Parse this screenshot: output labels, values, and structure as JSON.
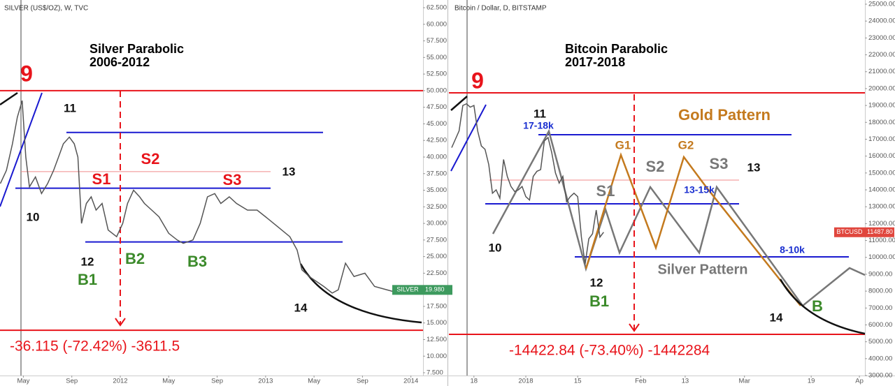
{
  "chart_data": [
    {
      "type": "line",
      "header": "SILVER (US$/OZ), W, TVC",
      "title": "Silver Parabolic",
      "subtitle": "2006-2012",
      "color": "#555555",
      "x": [
        2.1,
        2.6,
        3.1,
        3.5,
        3.9,
        4.2,
        4.5,
        5.0,
        5.5,
        6.0,
        6.5,
        6.9,
        7.3,
        7.8,
        8.2,
        8.5,
        8.8,
        9.2,
        9.6,
        10.0,
        10.5,
        11.0,
        11.7,
        12.2,
        12.6,
        13.1,
        13.6,
        14.0,
        14.6,
        15.2,
        16.0,
        16.7,
        17.2,
        18.0,
        18.6,
        19.2,
        19.8,
        20.3,
        21.0,
        21.6,
        22.5,
        23.3,
        24.0,
        25.0,
        26.0,
        26.6,
        27.0,
        27.6,
        28.0,
        28.8,
        29.5,
        30.0,
        30.6,
        31.3,
        32.2,
        33.0,
        34.0,
        35.0,
        36.5
      ],
      "values": [
        36,
        38,
        42,
        46,
        48.5,
        40,
        35.5,
        37,
        34.5,
        36,
        38,
        40,
        42,
        43,
        42,
        40,
        30,
        33,
        34,
        32,
        33,
        29,
        28,
        30,
        33,
        35,
        34,
        33,
        32,
        31,
        28.5,
        27.5,
        27,
        27.5,
        30,
        34,
        34.5,
        33,
        34,
        33,
        32,
        32,
        31,
        29.5,
        28,
        26,
        23,
        22,
        21.5,
        20.5,
        19.5,
        20,
        24,
        22,
        22.5,
        20.5,
        20,
        19.5,
        19.98
      ],
      "xlim": [
        2.07,
        37
      ],
      "ylim": [
        7.08,
        63.66
      ],
      "xticks": [
        {
          "value": 4,
          "label": "May"
        },
        {
          "value": 8,
          "label": "Sep"
        },
        {
          "value": 12,
          "label": "2012"
        },
        {
          "value": 16,
          "label": "May"
        },
        {
          "value": 20,
          "label": "Sep"
        },
        {
          "value": 24,
          "label": "2013"
        },
        {
          "value": 28,
          "label": "May"
        },
        {
          "value": 32,
          "label": "Sep"
        },
        {
          "value": 36,
          "label": "2014"
        }
      ],
      "yticks": [
        {
          "value": 62.5,
          "label": "62.500"
        },
        {
          "value": 60,
          "label": "60.000"
        },
        {
          "value": 57.5,
          "label": "57.500"
        },
        {
          "value": 55,
          "label": "55.000"
        },
        {
          "value": 52.5,
          "label": "52.500"
        },
        {
          "value": 50,
          "label": "50.000"
        },
        {
          "value": 47.5,
          "label": "47.500"
        },
        {
          "value": 45,
          "label": "45.000"
        },
        {
          "value": 42.5,
          "label": "42.500"
        },
        {
          "value": 40,
          "label": "40.000"
        },
        {
          "value": 37.5,
          "label": "37.500"
        },
        {
          "value": 35,
          "label": "35.000"
        },
        {
          "value": 32.5,
          "label": "32.500"
        },
        {
          "value": 30,
          "label": "30.000"
        },
        {
          "value": 27.5,
          "label": "27.500"
        },
        {
          "value": 25,
          "label": "25.000"
        },
        {
          "value": 22.5,
          "label": "22.500"
        },
        {
          "value": 20,
          "label": "20.000"
        },
        {
          "value": 17.5,
          "label": "17.500"
        },
        {
          "value": 15,
          "label": "15.000"
        },
        {
          "value": 12.5,
          "label": "12.500"
        },
        {
          "value": 10,
          "label": "10.000"
        },
        {
          "value": 7.5,
          "label": "7.500"
        }
      ],
      "levels": [
        {
          "value": 50,
          "color": "#e8141b"
        },
        {
          "value": 13.9,
          "color": "#e8141b"
        },
        {
          "value": 43.7,
          "color": "#1a1ad0"
        },
        {
          "value": 35.3,
          "color": "#1a1ad0"
        },
        {
          "value": 27.2,
          "color": "#1a1ad0"
        },
        {
          "value": 37.8,
          "color": "#f08a8a"
        }
      ],
      "price_tag": {
        "symbol": "SILVER",
        "label": "19.980",
        "color": "#3d9a5e"
      },
      "measure": "-36.115 (-72.42%) -3611.5",
      "annotations": [
        {
          "text": "9",
          "color": "#e8141b"
        },
        {
          "text": "11",
          "color": "#111111"
        },
        {
          "text": "10",
          "color": "#111111"
        },
        {
          "text": "12",
          "color": "#111111"
        },
        {
          "text": "B1",
          "color": "#3b8a2a"
        },
        {
          "text": "S1",
          "color": "#e8141b"
        },
        {
          "text": "S2",
          "color": "#e8141b"
        },
        {
          "text": "S3",
          "color": "#e8141b"
        },
        {
          "text": "B2",
          "color": "#3b8a2a"
        },
        {
          "text": "B3",
          "color": "#3b8a2a"
        },
        {
          "text": "13",
          "color": "#111111"
        },
        {
          "text": "14",
          "color": "#111111"
        }
      ]
    },
    {
      "type": "line",
      "header": "Bitcoin / Dollar, D, BITSTAMP",
      "title": "Bitcoin Parabolic",
      "subtitle": "2017-2018",
      "color": "#555555",
      "x": [
        -20,
        -19,
        -18,
        -17,
        -16,
        -15,
        -14,
        -13,
        -12,
        -11,
        -10,
        -9,
        -8,
        -7,
        -6,
        -5,
        -4,
        -3,
        -2,
        -1,
        0,
        1,
        2,
        3,
        4,
        5,
        6,
        7,
        8,
        9,
        10,
        11,
        12,
        13,
        14,
        15,
        16,
        17,
        18,
        19,
        20,
        21
      ],
      "values": [
        16500,
        17000,
        17500,
        19000,
        19100,
        18900,
        19000,
        17500,
        16600,
        16400,
        15500,
        13800,
        14000,
        13500,
        15800,
        14800,
        14200,
        13900,
        14000,
        14200,
        13600,
        13400,
        14800,
        15100,
        15200,
        16900,
        17100,
        16200,
        15000,
        14400,
        14800,
        13300,
        13600,
        13800,
        13600,
        11200,
        9600,
        11100,
        11400,
        12800,
        11200,
        11487.8
      ],
      "xlim": [
        -20.75,
        91.5
      ],
      "ylim": [
        3000,
        25248
      ],
      "xticks": [
        {
          "value": -14,
          "label": "18"
        },
        {
          "value": 0,
          "label": "2018"
        },
        {
          "value": 14,
          "label": "15"
        },
        {
          "value": 31,
          "label": "Feb"
        },
        {
          "value": 43,
          "label": "13"
        },
        {
          "value": 59,
          "label": "Mar"
        },
        {
          "value": 77,
          "label": "19"
        },
        {
          "value": 90,
          "label": "Ap"
        }
      ],
      "yticks": [
        {
          "value": 25000,
          "label": "25000.00"
        },
        {
          "value": 24000,
          "label": "24000.00"
        },
        {
          "value": 23000,
          "label": "23000.00"
        },
        {
          "value": 22000,
          "label": "22000.00"
        },
        {
          "value": 21000,
          "label": "21000.00"
        },
        {
          "value": 20000,
          "label": "20000.00"
        },
        {
          "value": 19000,
          "label": "19000.00"
        },
        {
          "value": 18000,
          "label": "18000.00"
        },
        {
          "value": 17000,
          "label": "17000.00"
        },
        {
          "value": 16000,
          "label": "16000.00"
        },
        {
          "value": 15000,
          "label": "15000.00"
        },
        {
          "value": 14000,
          "label": "14000.00"
        },
        {
          "value": 13000,
          "label": "13000.00"
        },
        {
          "value": 12000,
          "label": "12000.00"
        },
        {
          "value": 11000,
          "label": "11000.00"
        },
        {
          "value": 10000,
          "label": "10000.00"
        },
        {
          "value": 9000,
          "label": "9000.00"
        },
        {
          "value": 8000,
          "label": "8000.00"
        },
        {
          "value": 7000,
          "label": "7000.00"
        },
        {
          "value": 6000,
          "label": "6000.00"
        },
        {
          "value": 5000,
          "label": "5000.00"
        },
        {
          "value": 4000,
          "label": "4000.00"
        },
        {
          "value": 3000,
          "label": "3000.00"
        }
      ],
      "levels": [
        {
          "value": 19748,
          "color": "#e8141b"
        },
        {
          "value": 5440,
          "color": "#e8141b"
        },
        {
          "value": 17266,
          "color": "#1a1ad0"
        },
        {
          "value": 13172,
          "color": "#1a1ad0"
        },
        {
          "value": 10029,
          "color": "#1a1ad0"
        },
        {
          "value": 14578,
          "color": "#f08a8a"
        }
      ],
      "price_tag": {
        "symbol": "BTCUSD",
        "label": "11487.80",
        "color": "#e0463d"
      },
      "measure": "-14422.84 (-73.40%) -1442284",
      "annotations": [
        {
          "text": "9",
          "color": "#e8141b"
        },
        {
          "text": "11",
          "color": "#111111"
        },
        {
          "text": "17-18k",
          "color": "#1a2fd0"
        },
        {
          "text": "Gold Pattern",
          "color": "#c47a1e"
        },
        {
          "text": "G1",
          "color": "#c47a1e"
        },
        {
          "text": "G2",
          "color": "#c47a1e"
        },
        {
          "text": "S2",
          "color": "#777777"
        },
        {
          "text": "S3",
          "color": "#777777"
        },
        {
          "text": "13",
          "color": "#111111"
        },
        {
          "text": "S1",
          "color": "#777777"
        },
        {
          "text": "13-15k",
          "color": "#1a2fd0"
        },
        {
          "text": "10",
          "color": "#111111"
        },
        {
          "text": "8-10k",
          "color": "#1a2fd0"
        },
        {
          "text": "Silver Pattern",
          "color": "#777777"
        },
        {
          "text": "12",
          "color": "#111111"
        },
        {
          "text": "B1",
          "color": "#3b8a2a"
        },
        {
          "text": "B",
          "color": "#3b8a2a"
        },
        {
          "text": "14",
          "color": "#111111"
        }
      ]
    }
  ]
}
